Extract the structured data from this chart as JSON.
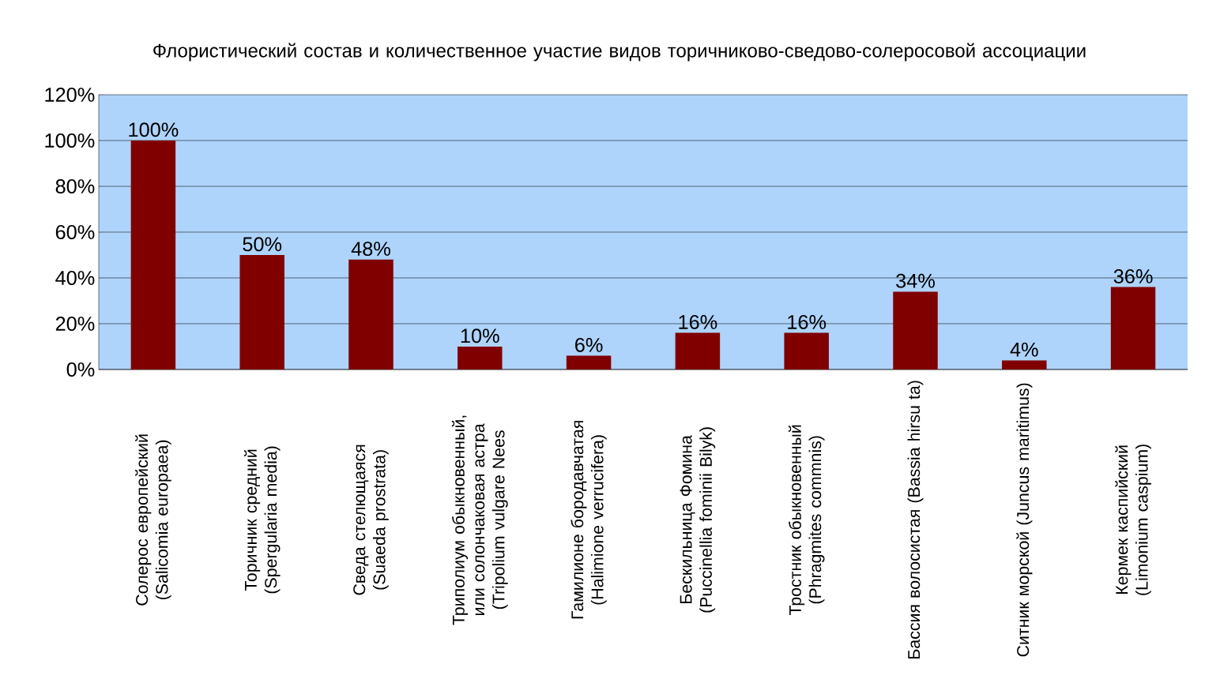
{
  "chart_data": {
    "type": "bar",
    "title": "Флористический состав и количественное участие видов торичниково-сведово-солеросовой ассоциации",
    "categories": [
      "Солерос европейский (Salicomia europaea)",
      "Торичник средний (Spergularia media)",
      "Сведа стелющаяся (Suaeda prostrata)",
      "Триполиум обыкновенный, или солончаковая астра (Tripolium vulgare Nees",
      "Гамилионе бородавчатая (Halimione verrucifera)",
      "Бескильница Фомина (Puccinellia fominii Bilyk)",
      "Тростник обыкновенный (Phragmites commnis)",
      "Бассия волосистая (Bassia hirsu ta)",
      "Ситник морской (Juncus maritimus)",
      "Кермек каспийский (Limonium caspium)"
    ],
    "values": [
      100,
      50,
      48,
      10,
      6,
      16,
      16,
      34,
      4,
      36
    ],
    "value_labels": [
      "100%",
      "50%",
      "48%",
      "10%",
      "6%",
      "16%",
      "16%",
      "34%",
      "4%",
      "36%"
    ],
    "color": "#800000",
    "ylim": [
      0,
      120
    ],
    "yticks": [
      {
        "value": 0,
        "label": "0%"
      },
      {
        "value": 20,
        "label": "20%"
      },
      {
        "value": 40,
        "label": "40%"
      },
      {
        "value": 60,
        "label": "60%"
      },
      {
        "value": 80,
        "label": "80%"
      },
      {
        "value": 100,
        "label": "100%"
      },
      {
        "value": 120,
        "label": "120%"
      }
    ],
    "grid": "y"
  }
}
